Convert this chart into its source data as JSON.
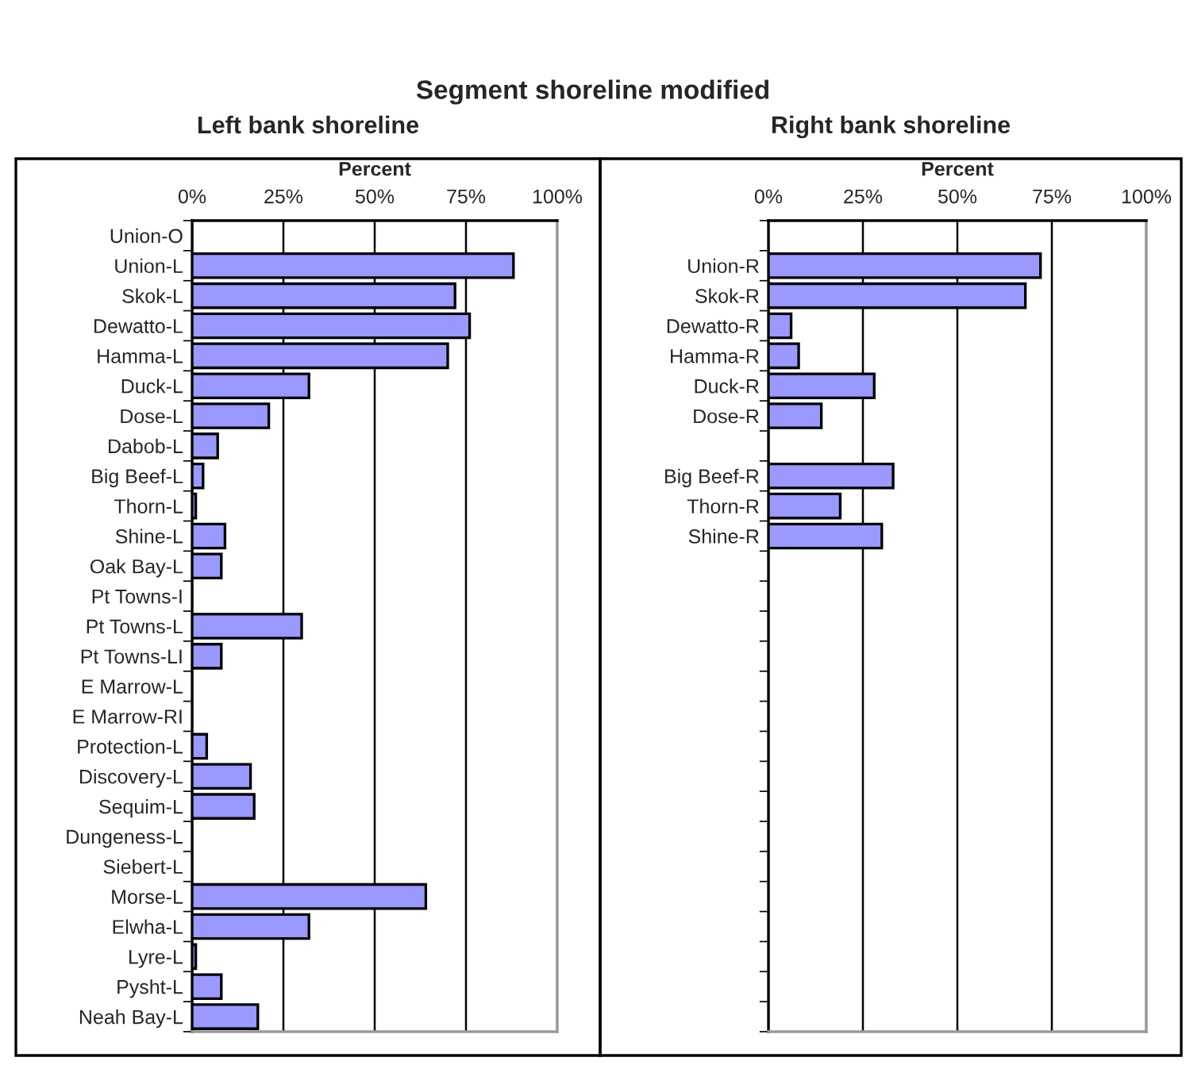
{
  "chart_data": [
    {
      "type": "bar",
      "orientation": "horizontal",
      "title": "Left bank shoreline",
      "xlabel": "Percent",
      "annotations": [
        "Segment shoreline modified"
      ],
      "categories": [
        "Union-O",
        "Union-L",
        "Skok-L",
        "Dewatto-L",
        "Hamma-L",
        "Duck-L",
        "Dose-L",
        "Dabob-L",
        "Big Beef-L",
        "Thorn-L",
        "Shine-L",
        "Oak Bay-L",
        "Pt Towns-I",
        "Pt Towns-L",
        "Pt Towns-LI",
        "E Marrow-L",
        "E Marrow-RI",
        "Protection-L",
        "Discovery-L",
        "Sequim-L",
        "Dungeness-L",
        "Siebert-L",
        "Morse-L",
        "Elwha-L",
        "Lyre-L",
        "Pysht-L",
        "Neah Bay-L"
      ],
      "values": [
        null,
        88,
        72,
        76,
        70,
        32,
        21,
        7,
        3,
        1,
        9,
        8,
        null,
        30,
        8,
        null,
        null,
        4,
        16,
        17,
        null,
        null,
        64,
        32,
        1,
        8,
        18
      ],
      "color": "#9999ff",
      "xlim": [
        0,
        100
      ],
      "xticks": [
        {
          "value": 0,
          "label": "0%"
        },
        {
          "value": 25,
          "label": "25%"
        },
        {
          "value": 50,
          "label": "50%"
        },
        {
          "value": 75,
          "label": "75%"
        },
        {
          "value": 100,
          "label": "100%"
        }
      ],
      "grid": "x"
    },
    {
      "type": "bar",
      "orientation": "horizontal",
      "title": "Right bank shoreline",
      "xlabel": "Percent",
      "categories": [
        null,
        "Union-R",
        "Skok-R",
        "Dewatto-R",
        "Hamma-R",
        "Duck-R",
        "Dose-R",
        null,
        "Big Beef-R",
        "Thorn-R",
        "Shine-R",
        null,
        null,
        null,
        null,
        null,
        null,
        null,
        null,
        null,
        null,
        null,
        null,
        null,
        null,
        null,
        null
      ],
      "values": [
        null,
        72,
        68,
        6,
        8,
        28,
        14,
        null,
        33,
        19,
        30,
        null,
        null,
        null,
        null,
        null,
        null,
        null,
        null,
        null,
        null,
        null,
        null,
        null,
        null,
        null,
        null
      ],
      "color": "#9999ff",
      "xlim": [
        0,
        100
      ],
      "xticks": [
        {
          "value": 0,
          "label": "0%"
        },
        {
          "value": 25,
          "label": "25%"
        },
        {
          "value": 50,
          "label": "50%"
        },
        {
          "value": 75,
          "label": "75%"
        },
        {
          "value": 100,
          "label": "100%"
        }
      ],
      "grid": "x"
    }
  ]
}
